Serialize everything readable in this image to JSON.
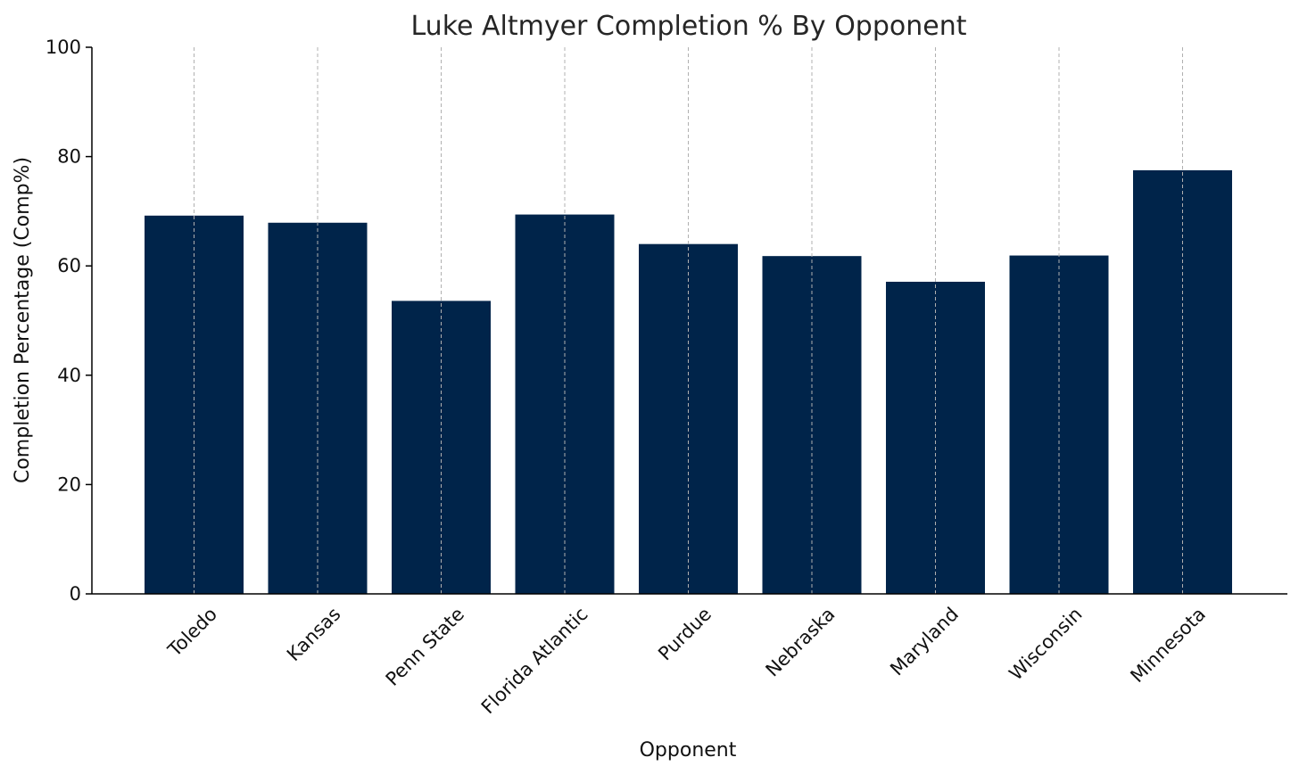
{
  "chart_data": {
    "type": "bar",
    "title": "Luke Altmyer Completion % By Opponent",
    "xlabel": "Opponent",
    "ylabel": "Completion Percentage (Comp%)",
    "categories": [
      "Toledo",
      "Kansas",
      "Penn State",
      "Florida Atlantic",
      "Purdue",
      "Nebraska",
      "Maryland",
      "Wisconsin",
      "Minnesota"
    ],
    "values": [
      69.2,
      67.9,
      53.6,
      69.4,
      64.0,
      61.8,
      57.1,
      61.9,
      77.5
    ],
    "ylim": [
      0,
      100
    ],
    "yticks": [
      0,
      20,
      40,
      60,
      80,
      100
    ],
    "grid": "vertical dashed",
    "colors": {
      "bar": "#00244a",
      "grid": "#b0b0b0",
      "axis": "#000000"
    }
  }
}
